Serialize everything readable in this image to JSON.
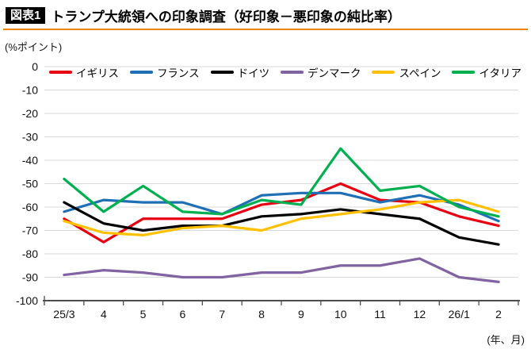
{
  "header": {
    "badge": "図表1",
    "title": "トランプ大統領への印象調査（好印象－悪印象の純比率）"
  },
  "unit_label": "(%ポイント)",
  "axis_note": "(年、月)",
  "colors": {
    "accent_rule": "#f08300",
    "grid": "#d9d9d9",
    "axis": "#4d4d4d",
    "badge_bg": "#000000",
    "badge_fg": "#ffffff"
  },
  "chart_data": {
    "type": "line",
    "title": "トランプ大統領への印象調査（好印象－悪印象の純比率）",
    "ylabel": "%ポイント",
    "xlabel": "年、月",
    "grid": true,
    "legend_position": "top-inside",
    "ylim": [
      -100,
      0
    ],
    "yticks": [
      0,
      -10,
      -20,
      -30,
      -40,
      -50,
      -60,
      -70,
      -80,
      -90,
      -100
    ],
    "categories": [
      "25/3",
      "4",
      "5",
      "6",
      "7",
      "8",
      "9",
      "10",
      "11",
      "12",
      "26/1",
      "2"
    ],
    "series": [
      {
        "name": "イギリス",
        "color": "#e60012",
        "values": [
          -65,
          -75,
          -65,
          -65,
          -65,
          -59,
          -57,
          -50,
          -57,
          -58,
          -64,
          -68
        ]
      },
      {
        "name": "フランス",
        "color": "#1f6fb5",
        "values": [
          -62,
          -57,
          -58,
          -58,
          -63,
          -55,
          -54,
          -54,
          -58,
          -55,
          -59,
          -66
        ]
      },
      {
        "name": "ドイツ",
        "color": "#000000",
        "values": [
          -58,
          -67,
          -70,
          -68,
          -68,
          -64,
          -63,
          -61,
          -63,
          -65,
          -73,
          -76
        ]
      },
      {
        "name": "デンマーク",
        "color": "#8064a2",
        "values": [
          -89,
          -87,
          -88,
          -90,
          -90,
          -88,
          -88,
          -85,
          -85,
          -82,
          -90,
          -92
        ]
      },
      {
        "name": "スペイン",
        "color": "#ffc000",
        "values": [
          -66,
          -71,
          -72,
          -69,
          -68,
          -70,
          -65,
          -63,
          -61,
          -58,
          -57,
          -62
        ]
      },
      {
        "name": "イタリア",
        "color": "#00b050",
        "values": [
          -48,
          -62,
          -51,
          -62,
          -63,
          -57,
          -59,
          -35,
          -53,
          -51,
          -60,
          -64
        ]
      }
    ]
  }
}
